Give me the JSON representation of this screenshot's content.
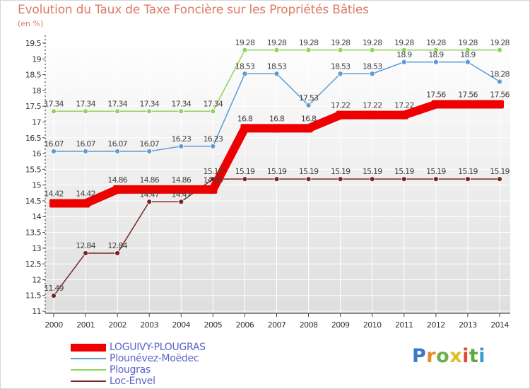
{
  "chart_data": {
    "type": "line",
    "title": "Evolution du Taux de Taxe Foncière sur les Propriétés Bâties",
    "ylabel": "(en %)",
    "xlabel": "",
    "categories": [
      "2000",
      "2001",
      "2002",
      "2003",
      "2004",
      "2005",
      "2006",
      "2007",
      "2008",
      "2009",
      "2010",
      "2011",
      "2012",
      "2013",
      "2014"
    ],
    "ylim": [
      11,
      19.5
    ],
    "yticks": [
      "11",
      "11.5",
      "12",
      "12.5",
      "13",
      "13.5",
      "14",
      "14.5",
      "15",
      "15.5",
      "16",
      "16.5",
      "17",
      "17.5",
      "18",
      "18.5",
      "19",
      "19.5"
    ],
    "grid": true,
    "series": [
      {
        "name": "LOGUIVY-PLOUGRAS",
        "color": "#ee0000",
        "values": [
          14.42,
          14.42,
          14.86,
          14.86,
          14.86,
          14.86,
          16.8,
          16.8,
          16.8,
          17.22,
          17.22,
          17.22,
          17.56,
          17.56,
          17.56
        ]
      },
      {
        "name": "Plounévez-Moëdec",
        "color": "#5b9bd5",
        "values": [
          16.07,
          16.07,
          16.07,
          16.07,
          16.23,
          16.23,
          18.53,
          18.53,
          17.53,
          18.53,
          18.53,
          18.9,
          18.9,
          18.9,
          18.28
        ]
      },
      {
        "name": "Plougras",
        "color": "#8fd45a",
        "values": [
          17.34,
          17.34,
          17.34,
          17.34,
          17.34,
          17.34,
          19.28,
          19.28,
          19.28,
          19.28,
          19.28,
          19.28,
          19.28,
          19.28,
          19.28
        ]
      },
      {
        "name": "Loc-Envel",
        "color": "#7a2424",
        "values": [
          11.49,
          12.84,
          12.84,
          14.47,
          14.47,
          15.19,
          15.19,
          15.19,
          15.19,
          15.19,
          15.19,
          15.19,
          15.19,
          15.19,
          15.19
        ]
      }
    ]
  },
  "logo": {
    "text": "Proxiti"
  }
}
